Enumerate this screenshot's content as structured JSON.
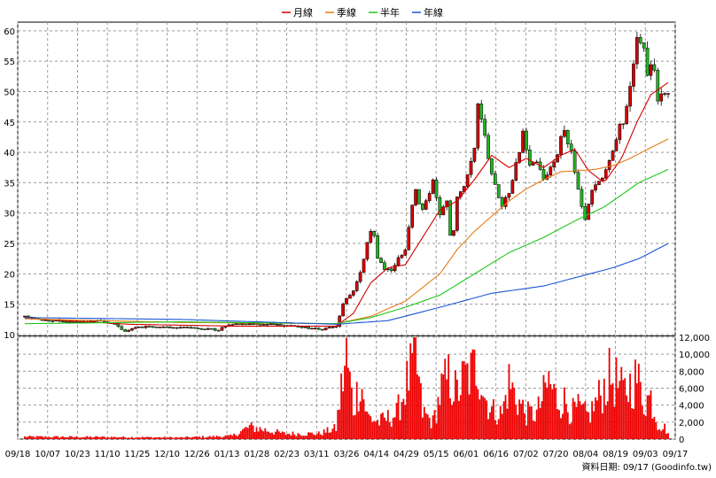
{
  "chart_data": {
    "type": "candlestick",
    "legend": {
      "placement": "top-center",
      "items": [
        {
          "name": "月線",
          "color": "#d40000"
        },
        {
          "name": "季線",
          "color": "#e87a14"
        },
        {
          "name": "半年",
          "color": "#1ec81e"
        },
        {
          "name": "年線",
          "color": "#1a56d6"
        }
      ]
    },
    "price_axis": {
      "ticks": [
        10,
        15,
        20,
        25,
        30,
        35,
        40,
        45,
        50,
        55,
        60
      ],
      "ylim": [
        10,
        61
      ],
      "side": "left"
    },
    "volume_axis": {
      "ticks": [
        "0",
        "2,000",
        "4,000",
        "6,000",
        "8,000",
        "10,000",
        "12,000"
      ],
      "ylim": [
        0,
        12000
      ],
      "side": "right"
    },
    "x_tick_labels": [
      "09/18",
      "10/07",
      "10/23",
      "11/10",
      "11/25",
      "12/10",
      "12/26",
      "01/13",
      "01/28",
      "02/23",
      "03/11",
      "03/26",
      "04/14",
      "04/29",
      "05/15",
      "06/01",
      "06/16",
      "07/02",
      "07/20",
      "08/04",
      "08/19",
      "09/03",
      "09/17"
    ],
    "grid": true,
    "candle_up_color": "#d40000",
    "candle_down_color": "#22b422",
    "volume_color": "#ee0000",
    "close_points": [
      [
        0,
        12.9
      ],
      [
        10,
        12.5
      ],
      [
        20,
        12.3
      ],
      [
        30,
        12.0
      ],
      [
        40,
        12.3
      ],
      [
        50,
        11.9
      ],
      [
        58,
        10.6
      ],
      [
        66,
        11.2
      ],
      [
        80,
        11.3
      ],
      [
        95,
        11.1
      ],
      [
        112,
        10.8
      ],
      [
        120,
        11.8
      ],
      [
        140,
        11.7
      ],
      [
        160,
        11.2
      ],
      [
        172,
        10.9
      ],
      [
        180,
        11.5
      ],
      [
        185,
        15.8
      ],
      [
        190,
        17.0
      ],
      [
        195,
        21.0
      ],
      [
        198,
        25.5
      ],
      [
        201,
        28.0
      ],
      [
        204,
        22.5
      ],
      [
        208,
        21.0
      ],
      [
        212,
        20.3
      ],
      [
        216,
        22.5
      ],
      [
        220,
        24.3
      ],
      [
        222,
        28.0
      ],
      [
        226,
        34.0
      ],
      [
        229,
        30.0
      ],
      [
        233,
        32.5
      ],
      [
        236,
        35.5
      ],
      [
        240,
        30.0
      ],
      [
        244,
        32.0
      ],
      [
        247,
        24.0
      ],
      [
        250,
        32.5
      ],
      [
        254,
        34.0
      ],
      [
        258,
        38.5
      ],
      [
        261,
        42.5
      ],
      [
        262,
        47.5
      ],
      [
        265,
        44.0
      ],
      [
        269,
        38.0
      ],
      [
        272,
        35.0
      ],
      [
        276,
        31.0
      ],
      [
        280,
        33.5
      ],
      [
        284,
        38.0
      ],
      [
        288,
        43.0
      ],
      [
        292,
        38.0
      ],
      [
        296,
        38.5
      ],
      [
        300,
        35.5
      ],
      [
        304,
        37.5
      ],
      [
        308,
        40.0
      ],
      [
        311,
        44.0
      ],
      [
        315,
        41.0
      ],
      [
        318,
        37.0
      ],
      [
        321,
        32.0
      ],
      [
        324,
        29.0
      ],
      [
        327,
        33.0
      ],
      [
        331,
        35.0
      ],
      [
        335,
        36.5
      ],
      [
        339,
        39.0
      ],
      [
        343,
        43.5
      ],
      [
        347,
        46.0
      ],
      [
        351,
        51.5
      ],
      [
        354,
        58.5
      ],
      [
        357,
        59.0
      ],
      [
        360,
        53.0
      ],
      [
        363,
        55.0
      ],
      [
        366,
        48.5
      ],
      [
        369,
        50.0
      ],
      [
        372,
        49.5
      ]
    ],
    "volume_points": [
      [
        0,
        300
      ],
      [
        60,
        250
      ],
      [
        90,
        200
      ],
      [
        120,
        400
      ],
      [
        130,
        1600
      ],
      [
        150,
        700
      ],
      [
        170,
        700
      ],
      [
        180,
        1400
      ],
      [
        183,
        6500
      ],
      [
        186,
        10800
      ],
      [
        190,
        4000
      ],
      [
        194,
        7800
      ],
      [
        198,
        3000
      ],
      [
        205,
        2200
      ],
      [
        215,
        3300
      ],
      [
        222,
        8000
      ],
      [
        226,
        10500
      ],
      [
        230,
        3500
      ],
      [
        236,
        2200
      ],
      [
        241,
        6500
      ],
      [
        245,
        8000
      ],
      [
        250,
        6000
      ],
      [
        254,
        8000
      ],
      [
        258,
        8500
      ],
      [
        262,
        10000
      ],
      [
        266,
        5500
      ],
      [
        270,
        3800
      ],
      [
        276,
        3300
      ],
      [
        280,
        7500
      ],
      [
        284,
        5500
      ],
      [
        290,
        3300
      ],
      [
        296,
        3300
      ],
      [
        303,
        7500
      ],
      [
        308,
        5000
      ],
      [
        312,
        5000
      ],
      [
        316,
        3500
      ],
      [
        320,
        4000
      ],
      [
        326,
        3000
      ],
      [
        332,
        5500
      ],
      [
        338,
        8000
      ],
      [
        342,
        7500
      ],
      [
        346,
        6000
      ],
      [
        350,
        7000
      ],
      [
        354,
        8000
      ],
      [
        358,
        5000
      ],
      [
        362,
        5500
      ],
      [
        366,
        2000
      ],
      [
        370,
        1500
      ],
      [
        372,
        800
      ]
    ],
    "moving_averages": {
      "月線": [
        [
          0,
          12.7
        ],
        [
          60,
          11.7
        ],
        [
          120,
          11.4
        ],
        [
          180,
          11.4
        ],
        [
          190,
          13.5
        ],
        [
          200,
          18.5
        ],
        [
          210,
          21.0
        ],
        [
          220,
          21.5
        ],
        [
          230,
          26.0
        ],
        [
          240,
          30.5
        ],
        [
          250,
          32.0
        ],
        [
          260,
          35.5
        ],
        [
          270,
          39.5
        ],
        [
          280,
          37.5
        ],
        [
          290,
          39.0
        ],
        [
          300,
          37.5
        ],
        [
          310,
          39.5
        ],
        [
          318,
          40.5
        ],
        [
          326,
          37.0
        ],
        [
          335,
          35.0
        ],
        [
          345,
          39.0
        ],
        [
          354,
          45.0
        ],
        [
          362,
          49.5
        ],
        [
          372,
          51.5
        ]
      ],
      "季線": [
        [
          0,
          12.6
        ],
        [
          90,
          12.0
        ],
        [
          180,
          11.8
        ],
        [
          200,
          13.0
        ],
        [
          220,
          15.5
        ],
        [
          240,
          20.0
        ],
        [
          250,
          24.0
        ],
        [
          260,
          27.0
        ],
        [
          270,
          29.5
        ],
        [
          280,
          32.0
        ],
        [
          290,
          34.0
        ],
        [
          300,
          35.5
        ],
        [
          310,
          36.8
        ],
        [
          320,
          37.0
        ],
        [
          330,
          37.2
        ],
        [
          340,
          37.8
        ],
        [
          350,
          39.0
        ],
        [
          360,
          40.5
        ],
        [
          372,
          42.2
        ]
      ],
      "半年": [
        [
          0,
          11.8
        ],
        [
          90,
          12.1
        ],
        [
          180,
          11.8
        ],
        [
          200,
          12.8
        ],
        [
          220,
          14.5
        ],
        [
          240,
          16.5
        ],
        [
          260,
          20.0
        ],
        [
          280,
          23.5
        ],
        [
          300,
          26.0
        ],
        [
          320,
          29.0
        ],
        [
          335,
          31.0
        ],
        [
          345,
          33.0
        ],
        [
          355,
          35.0
        ],
        [
          372,
          37.2
        ]
      ],
      "年線": [
        [
          0,
          12.8
        ],
        [
          90,
          12.5
        ],
        [
          180,
          11.7
        ],
        [
          210,
          12.3
        ],
        [
          240,
          14.5
        ],
        [
          270,
          16.8
        ],
        [
          300,
          18.0
        ],
        [
          320,
          19.5
        ],
        [
          340,
          21.0
        ],
        [
          355,
          22.5
        ],
        [
          372,
          25.0
        ]
      ]
    }
  },
  "footer": {
    "source_label": "資料日期: 09/17 (Goodinfo.tw)"
  }
}
